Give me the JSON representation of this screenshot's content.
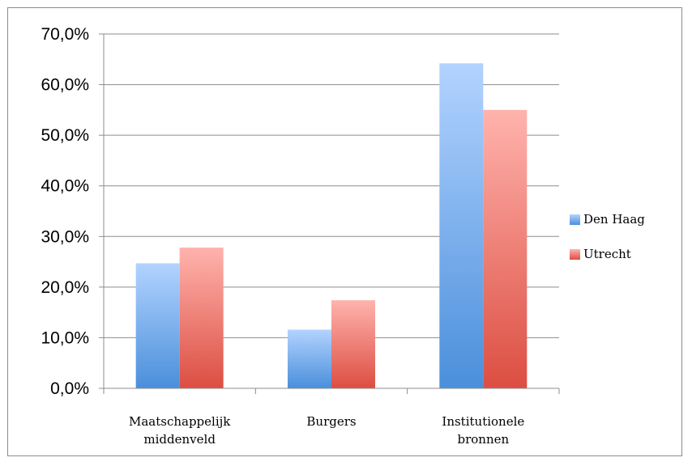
{
  "chart_data": {
    "type": "bar",
    "categories": [
      [
        "Maatschappelijk",
        "middenveld"
      ],
      [
        "Burgers"
      ],
      [
        "Institutionele",
        "bronnen"
      ]
    ],
    "series": [
      {
        "name": "Den Haag",
        "values": [
          24.7,
          11.6,
          64.2
        ],
        "color_top": "#b3d3ff",
        "color_bottom": "#4a8fdb"
      },
      {
        "name": "Utrecht",
        "values": [
          27.8,
          17.4,
          55.0
        ],
        "color_top": "#ffb3ad",
        "color_bottom": "#dc4e42"
      }
    ],
    "ylim": [
      0,
      70
    ],
    "yticks": [
      "0,0%",
      "10,0%",
      "20,0%",
      "30,0%",
      "40,0%",
      "50,0%",
      "60,0%",
      "70,0%"
    ],
    "grid": true,
    "legend_position": "right",
    "title": "",
    "xlabel": "",
    "ylabel": ""
  }
}
